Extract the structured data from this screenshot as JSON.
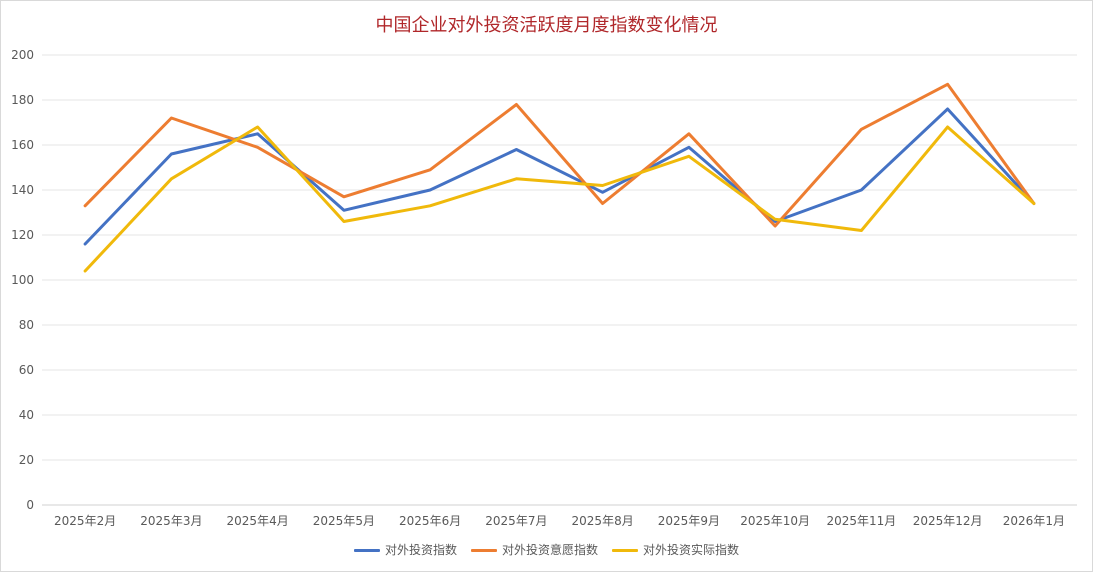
{
  "chart_data": {
    "type": "line",
    "title": "中国企业对外投资活跃度月度指数变化情况",
    "xlabel": "",
    "ylabel": "",
    "ylim": [
      0,
      200
    ],
    "yticks": [
      0,
      20,
      40,
      60,
      80,
      100,
      120,
      140,
      160,
      180,
      200
    ],
    "grid": true,
    "legend_position": "bottom",
    "categories": [
      "2025年2月",
      "2025年3月",
      "2025年4月",
      "2025年5月",
      "2025年6月",
      "2025年7月",
      "2025年8月",
      "2025年9月",
      "2025年10月",
      "2025年11月",
      "2025年12月",
      "2026年1月"
    ],
    "series": [
      {
        "name": "对外投资指数",
        "color": "#4472c4",
        "values": [
          116,
          156,
          165,
          131,
          140,
          158,
          139,
          159,
          126,
          140,
          176,
          134
        ]
      },
      {
        "name": "对外投资意愿指数",
        "color": "#ed7d31",
        "values": [
          133,
          172,
          159,
          137,
          149,
          178,
          134,
          165,
          124,
          167,
          187,
          134
        ]
      },
      {
        "name": "对外投资实际指数",
        "color": "#f0b90b",
        "values": [
          104,
          145,
          168,
          126,
          133,
          145,
          142,
          155,
          127,
          122,
          168,
          134
        ]
      }
    ]
  }
}
